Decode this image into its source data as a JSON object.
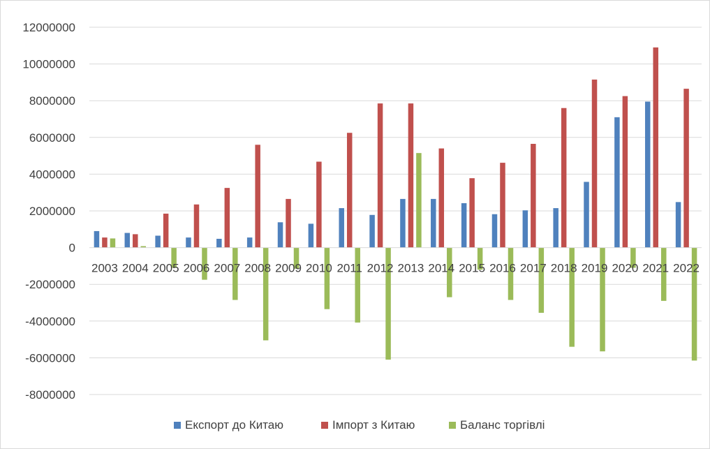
{
  "chart_data": {
    "type": "bar",
    "categories": [
      "2003",
      "2004",
      "2005",
      "2006",
      "2007",
      "2008",
      "2009",
      "2010",
      "2011",
      "2012",
      "2013",
      "2014",
      "2015",
      "2016",
      "2017",
      "2018",
      "2019",
      "2020",
      "2021",
      "2022"
    ],
    "series": [
      {
        "name": "Експорт до Китаю",
        "color": "#4f81bd",
        "values": [
          900000,
          800000,
          650000,
          550000,
          480000,
          550000,
          1380000,
          1300000,
          2150000,
          1780000,
          2650000,
          2650000,
          2420000,
          1820000,
          2030000,
          2150000,
          3580000,
          7100000,
          7950000,
          2480000
        ]
      },
      {
        "name": "Імпорт з Китаю",
        "color": "#c0504d",
        "values": [
          550000,
          730000,
          1850000,
          2350000,
          3250000,
          5600000,
          2650000,
          4680000,
          6250000,
          7850000,
          7850000,
          5400000,
          3780000,
          4620000,
          5650000,
          7600000,
          9150000,
          8250000,
          10900000,
          8650000
        ]
      },
      {
        "name": "Баланс торгівлі",
        "color": "#9bbb59",
        "values": [
          500000,
          80000,
          -1100000,
          -1750000,
          -2850000,
          -5050000,
          -1150000,
          -3350000,
          -4080000,
          -6100000,
          5150000,
          -2700000,
          -1200000,
          -2850000,
          -3550000,
          -5400000,
          -5650000,
          -1100000,
          -2900000,
          -6150000
        ]
      }
    ],
    "y_ticks": [
      "12000000",
      "10000000",
      "8000000",
      "6000000",
      "4000000",
      "2000000",
      "0",
      "-2000000",
      "-4000000",
      "-6000000",
      "-8000000"
    ],
    "ylim": [
      -8000000,
      12000000
    ],
    "grid": true,
    "legend": "bottom"
  }
}
